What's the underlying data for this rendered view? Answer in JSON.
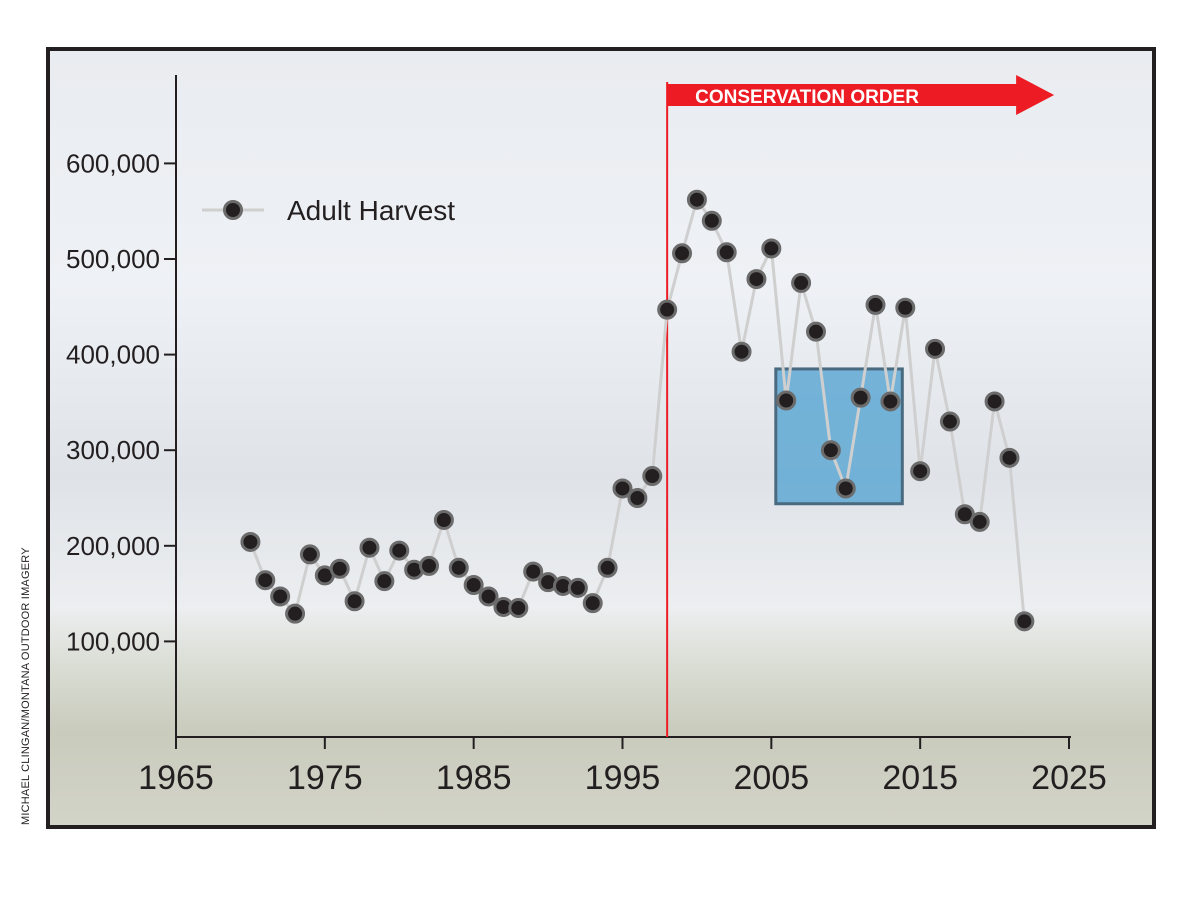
{
  "chart_data": {
    "type": "line",
    "title": "",
    "xlabel": "",
    "ylabel": "",
    "xlim": [
      1965,
      2025
    ],
    "ylim": [
      0,
      650000
    ],
    "x_ticks": [
      1965,
      1975,
      1985,
      1995,
      2005,
      2015,
      2025
    ],
    "x_tick_labels": [
      "1965",
      "1975",
      "1985",
      "1995",
      "2005",
      "2015",
      "2025"
    ],
    "y_ticks": [
      100000,
      200000,
      300000,
      400000,
      500000,
      600000
    ],
    "y_tick_labels": [
      "100,000",
      "200,000",
      "300,000",
      "400,000",
      "500,000",
      "600,000"
    ],
    "legend": {
      "position": "top-left",
      "entries": [
        "Adult Harvest"
      ]
    },
    "series": [
      {
        "name": "Adult Harvest",
        "x": [
          1970,
          1971,
          1972,
          1973,
          1974,
          1975,
          1976,
          1977,
          1978,
          1979,
          1980,
          1981,
          1982,
          1983,
          1984,
          1985,
          1986,
          1987,
          1988,
          1989,
          1990,
          1991,
          1992,
          1993,
          1994,
          1995,
          1996,
          1997,
          1998,
          1999,
          2000,
          2001,
          2002,
          2003,
          2004,
          2005,
          2006,
          2007,
          2008,
          2009,
          2010,
          2011,
          2012,
          2013,
          2014,
          2015,
          2016,
          2017,
          2018,
          2019,
          2020,
          2021,
          2022
        ],
        "values": [
          204000,
          164000,
          147000,
          129000,
          191000,
          169000,
          176000,
          142000,
          198000,
          163000,
          195000,
          175000,
          179000,
          227000,
          177000,
          159000,
          147000,
          136000,
          135000,
          173000,
          162000,
          158000,
          156000,
          140000,
          177000,
          260000,
          250000,
          273000,
          447000,
          506000,
          562000,
          540000,
          507000,
          403000,
          479000,
          511000,
          352000,
          475000,
          424000,
          300000,
          260000,
          355000,
          452000,
          351000,
          449000,
          278000,
          406000,
          330000,
          233000,
          225000,
          351000,
          292000,
          121000
        ]
      }
    ],
    "annotations": [
      {
        "type": "vline",
        "x": 1998,
        "color": "#ed1c24"
      },
      {
        "type": "arrow",
        "text": "CONSERVATION ORDER",
        "x_start": 1998,
        "x_end": 2024,
        "color": "#ed1c24"
      },
      {
        "type": "highlight-box",
        "x_range": [
          2005.3,
          2013.8
        ],
        "y_range": [
          244000,
          385000
        ],
        "color": "#6baed6"
      }
    ]
  },
  "credit": "MICHAEL CLINGAN/MONTANA OUTDOOR IMAGERY",
  "colors": {
    "line": "#cfcfcf",
    "marker": "#231f20",
    "accent": "#ed1c24",
    "box": "#5fa8d3"
  }
}
